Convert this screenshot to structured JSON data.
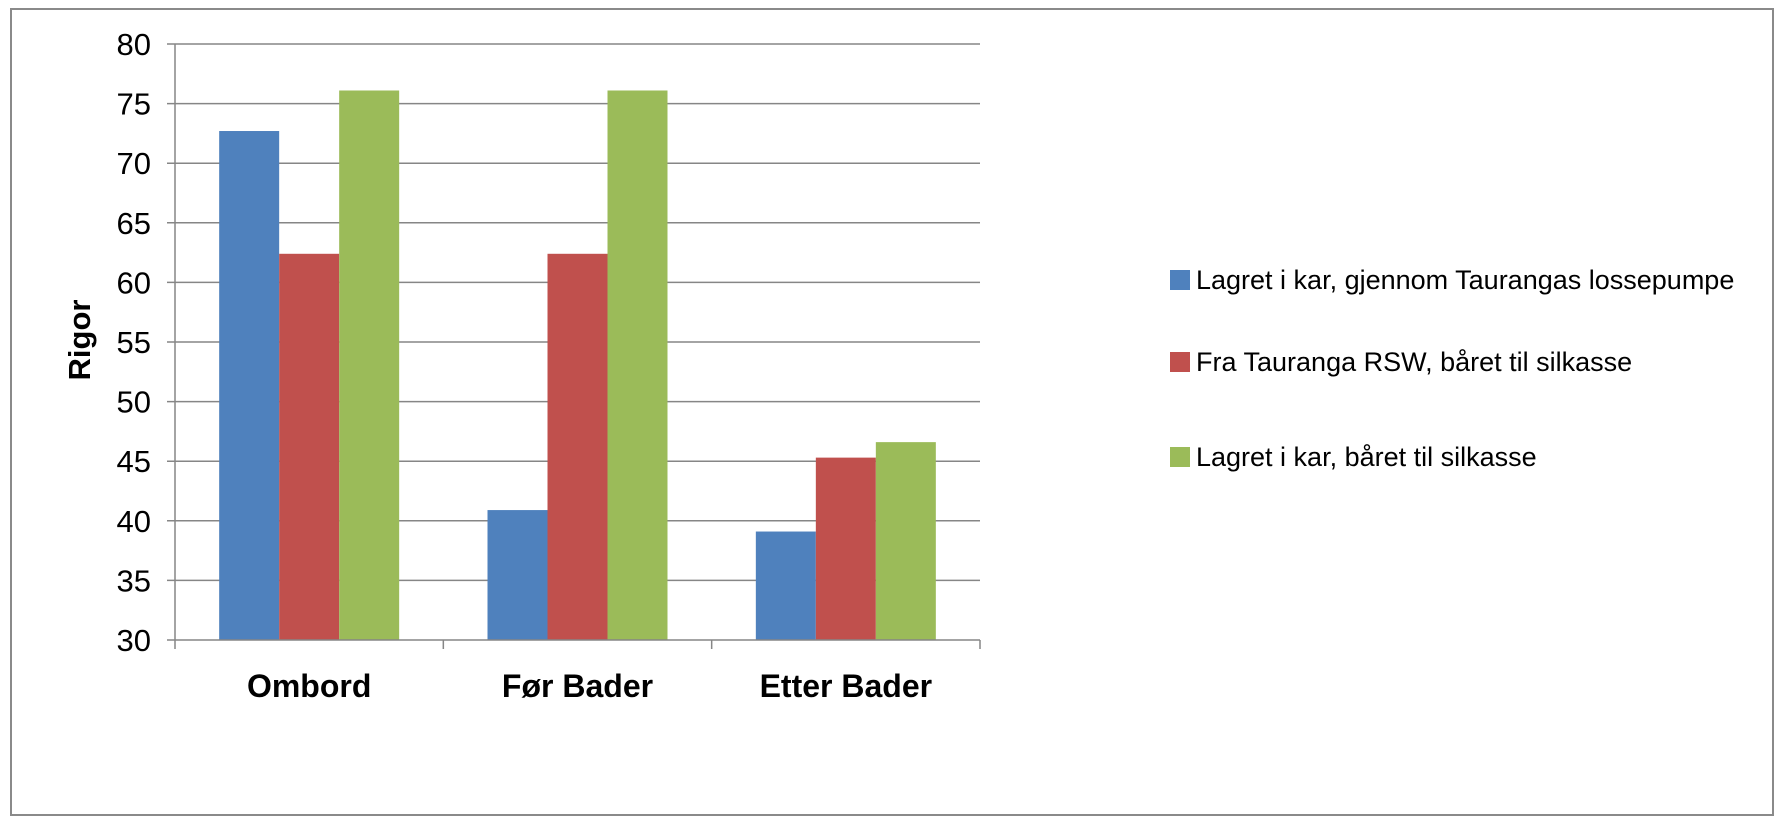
{
  "chart_data": {
    "type": "bar",
    "title": "",
    "xlabel": "",
    "ylabel": "Rigor",
    "ylim": [
      30,
      80
    ],
    "yticks": [
      30,
      35,
      40,
      45,
      50,
      55,
      60,
      65,
      70,
      75,
      80
    ],
    "grid": true,
    "legend_position": "right",
    "categories": [
      "Ombord",
      "Før Bader",
      "Etter Bader"
    ],
    "series": [
      {
        "name": "Lagret i kar, gjennom Taurangas lossepumpe",
        "color": "#4f81bd",
        "values": [
          72.7,
          40.9,
          39.1
        ]
      },
      {
        "name": "Fra Tauranga RSW, båret til silkasse",
        "color": "#c0504d",
        "values": [
          62.4,
          62.4,
          45.3
        ]
      },
      {
        "name": "Lagret i kar, båret til silkasse",
        "color": "#9bbb59",
        "values": [
          76.1,
          76.1,
          46.6
        ]
      }
    ]
  }
}
